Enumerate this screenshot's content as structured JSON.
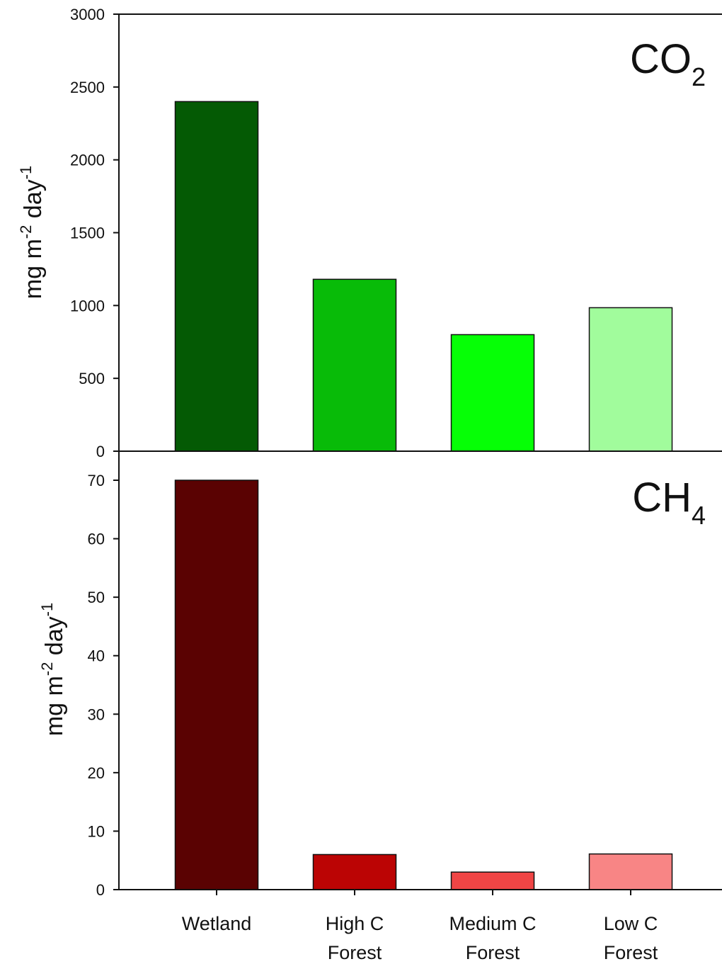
{
  "chart_data": [
    {
      "type": "bar",
      "title": "CO",
      "title_sub": "2",
      "ylabel": "mg m",
      "ylabel_sup1": "-2",
      "ylabel_mid": " day",
      "ylabel_sup2": "-1",
      "ylim": [
        0,
        3000
      ],
      "yticks": [
        0,
        500,
        1000,
        1500,
        2000,
        2500,
        3000
      ],
      "categories": [
        "Wetland",
        "High C Forest",
        "Medium C Forest",
        "Low C Forest"
      ],
      "values": [
        2400,
        1180,
        800,
        985
      ],
      "colors": [
        "#045a04",
        "#08bb08",
        "#06ff06",
        "#a1fc9c"
      ]
    },
    {
      "type": "bar",
      "title": "CH",
      "title_sub": "4",
      "ylabel": "mg m",
      "ylabel_sup1": "-2",
      "ylabel_mid": " day",
      "ylabel_sup2": "-1",
      "ylim": [
        0,
        75
      ],
      "yticks": [
        0,
        10,
        20,
        30,
        40,
        50,
        60,
        70
      ],
      "categories": [
        "Wetland",
        "High C Forest",
        "Medium C Forest",
        "Low C Forest"
      ],
      "values": [
        70,
        6,
        3,
        6.1
      ],
      "colors": [
        "#5a0202",
        "#bb0404",
        "#f04545",
        "#f88585"
      ]
    }
  ],
  "x_labels": [
    [
      "Wetland"
    ],
    [
      "High C",
      "Forest"
    ],
    [
      "Medium C",
      "Forest"
    ],
    [
      "Low C",
      "Forest"
    ]
  ]
}
